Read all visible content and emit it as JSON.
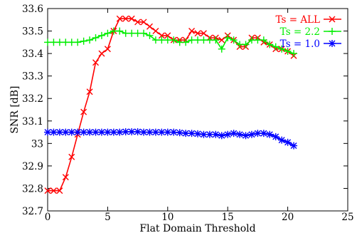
{
  "chart_data": {
    "type": "line",
    "title": "",
    "xlabel": "Flat Domain Threshold",
    "ylabel": "SNR [dB]",
    "xlim": [
      0,
      25
    ],
    "ylim": [
      32.7,
      33.6
    ],
    "xticks": [
      0,
      5,
      10,
      15,
      20,
      25
    ],
    "xtick_labels": [
      "0",
      "5",
      "10",
      "15",
      "20",
      "25"
    ],
    "yticks": [
      32.7,
      32.8,
      32.9,
      33.0,
      33.1,
      33.2,
      33.3,
      33.4,
      33.5,
      33.6
    ],
    "ytick_labels": [
      "32.7",
      "32.8",
      "32.9",
      "33",
      "33.1",
      "33.2",
      "33.3",
      "33.4",
      "33.5",
      "33.6"
    ],
    "grid": false,
    "legend_position": "top-right",
    "series": [
      {
        "name": "Ts = ALL",
        "color": "#ff0000",
        "marker": "x",
        "x": [
          0,
          0.5,
          1,
          1.5,
          2,
          2.5,
          3,
          3.5,
          4,
          4.5,
          5,
          5.5,
          6,
          6.5,
          7,
          7.5,
          8,
          8.5,
          9,
          9.5,
          10,
          10.5,
          11,
          11.5,
          12,
          12.5,
          13,
          13.5,
          14,
          14.5,
          15,
          15.5,
          16,
          16.5,
          17,
          17.5,
          18,
          18.5,
          19,
          19.5,
          20,
          20.5
        ],
        "y": [
          32.79,
          32.79,
          32.79,
          32.85,
          32.94,
          33.04,
          33.14,
          33.23,
          33.36,
          33.4,
          33.42,
          33.5,
          33.555,
          33.555,
          33.555,
          33.54,
          33.54,
          33.52,
          33.5,
          33.48,
          33.48,
          33.46,
          33.46,
          33.46,
          33.5,
          33.49,
          33.49,
          33.47,
          33.47,
          33.46,
          33.48,
          33.46,
          33.43,
          33.43,
          33.47,
          33.47,
          33.45,
          33.44,
          33.42,
          33.42,
          33.41,
          33.39
        ]
      },
      {
        "name": "Ts = 2.2",
        "color": "#00ee00",
        "marker": "+",
        "x": [
          0,
          0.5,
          1,
          1.5,
          2,
          2.5,
          3,
          3.5,
          4,
          4.5,
          5,
          5.5,
          6,
          6.5,
          7,
          7.5,
          8,
          8.5,
          9,
          9.5,
          10,
          10.5,
          11,
          11.5,
          12,
          12.5,
          13,
          13.5,
          14,
          14.5,
          15,
          15.5,
          16,
          16.5,
          17,
          17.5,
          18,
          18.5,
          19,
          19.5,
          20,
          20.5
        ],
        "y": [
          33.45,
          33.45,
          33.45,
          33.45,
          33.45,
          33.45,
          33.455,
          33.46,
          33.47,
          33.48,
          33.49,
          33.5,
          33.5,
          33.49,
          33.49,
          33.49,
          33.49,
          33.48,
          33.46,
          33.46,
          33.46,
          33.46,
          33.45,
          33.45,
          33.46,
          33.46,
          33.46,
          33.46,
          33.46,
          33.42,
          33.47,
          33.46,
          33.44,
          33.44,
          33.46,
          33.46,
          33.46,
          33.44,
          33.43,
          33.42,
          33.41,
          33.4
        ]
      },
      {
        "name": "Ts = 1.0",
        "color": "#0000ff",
        "marker": "*",
        "x": [
          0,
          0.5,
          1,
          1.5,
          2,
          2.5,
          3,
          3.5,
          4,
          4.5,
          5,
          5.5,
          6,
          6.5,
          7,
          7.5,
          8,
          8.5,
          9,
          9.5,
          10,
          10.5,
          11,
          11.5,
          12,
          12.5,
          13,
          13.5,
          14,
          14.5,
          15,
          15.5,
          16,
          16.5,
          17,
          17.5,
          18,
          18.5,
          19,
          19.5,
          20,
          20.5
        ],
        "y": [
          33.05,
          33.05,
          33.05,
          33.05,
          33.05,
          33.05,
          33.05,
          33.05,
          33.05,
          33.05,
          33.05,
          33.05,
          33.05,
          33.052,
          33.052,
          33.052,
          33.05,
          33.05,
          33.05,
          33.05,
          33.05,
          33.05,
          33.048,
          33.045,
          33.045,
          33.043,
          33.04,
          33.04,
          33.04,
          33.035,
          33.04,
          33.045,
          33.04,
          33.035,
          33.04,
          33.045,
          33.045,
          33.04,
          33.03,
          33.015,
          33.005,
          32.99
        ]
      }
    ]
  }
}
